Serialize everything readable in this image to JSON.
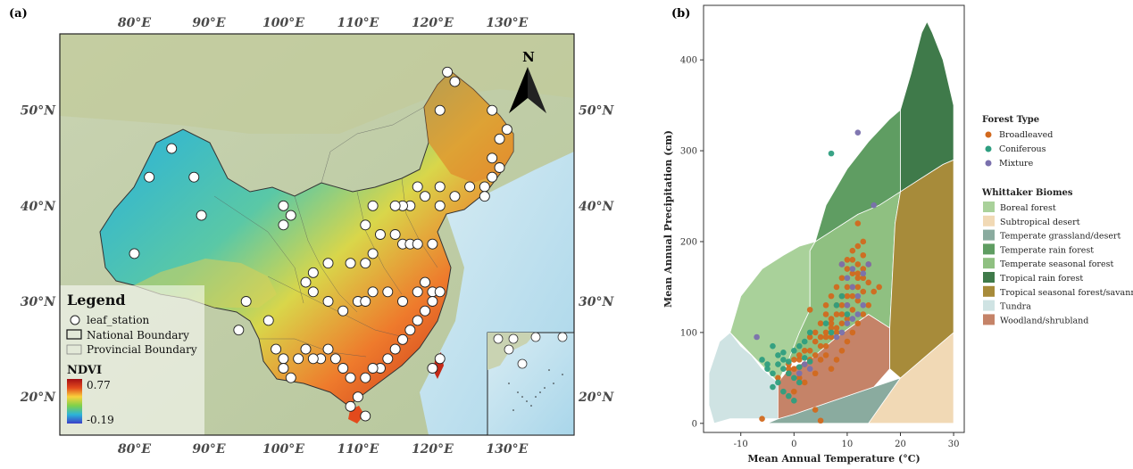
{
  "panel_a": {
    "label": "(a)",
    "lon_ticks": [
      "80°E",
      "90°E",
      "100°E",
      "110°E",
      "120°E",
      "130°E"
    ],
    "lat_ticks": [
      "50°N",
      "40°N",
      "30°N",
      "20°N"
    ],
    "north_label": "N",
    "legend": {
      "title": "Legend",
      "station": "leaf_station",
      "national": "National Boundary",
      "provincial": "Provincial Boundary",
      "ndvi_title": "NDVI",
      "ndvi_max": "0.77",
      "ndvi_min": "-0.19"
    },
    "stations": [
      [
        122,
        54
      ],
      [
        123,
        53
      ],
      [
        121,
        50
      ],
      [
        128,
        50
      ],
      [
        130,
        48
      ],
      [
        129,
        47
      ],
      [
        128,
        45
      ],
      [
        129,
        44
      ],
      [
        128,
        43
      ],
      [
        127,
        42
      ],
      [
        127,
        41
      ],
      [
        125,
        42
      ],
      [
        123,
        41
      ],
      [
        121,
        40
      ],
      [
        118,
        42
      ],
      [
        119,
        41
      ],
      [
        121,
        42
      ],
      [
        117,
        40
      ],
      [
        116,
        40
      ],
      [
        115,
        40
      ],
      [
        112,
        40
      ],
      [
        111,
        38
      ],
      [
        113,
        37
      ],
      [
        115,
        37
      ],
      [
        116,
        36
      ],
      [
        117,
        36
      ],
      [
        118,
        36
      ],
      [
        120,
        36
      ],
      [
        112,
        35
      ],
      [
        111,
        34
      ],
      [
        109,
        34
      ],
      [
        106,
        34
      ],
      [
        104,
        33
      ],
      [
        103,
        32
      ],
      [
        104,
        31
      ],
      [
        106,
        30
      ],
      [
        108,
        29
      ],
      [
        110,
        30
      ],
      [
        111,
        30
      ],
      [
        112,
        31
      ],
      [
        114,
        31
      ],
      [
        116,
        30
      ],
      [
        118,
        31
      ],
      [
        119,
        32
      ],
      [
        120,
        31
      ],
      [
        121,
        31
      ],
      [
        120,
        30
      ],
      [
        119,
        29
      ],
      [
        118,
        28
      ],
      [
        117,
        27
      ],
      [
        116,
        26
      ],
      [
        115,
        25
      ],
      [
        114,
        24
      ],
      [
        113,
        23
      ],
      [
        112,
        23
      ],
      [
        111,
        22
      ],
      [
        109,
        22
      ],
      [
        108,
        23
      ],
      [
        107,
        24
      ],
      [
        106,
        25
      ],
      [
        105,
        24
      ],
      [
        104,
        24
      ],
      [
        103,
        25
      ],
      [
        102,
        24
      ],
      [
        100,
        24
      ],
      [
        101,
        22
      ],
      [
        110,
        20
      ],
      [
        109,
        19
      ],
      [
        111,
        18
      ],
      [
        120,
        23
      ],
      [
        121,
        24
      ],
      [
        100,
        23
      ],
      [
        99,
        25
      ],
      [
        98,
        28
      ],
      [
        95,
        30
      ],
      [
        94,
        27
      ],
      [
        85,
        46
      ],
      [
        82,
        43
      ],
      [
        88,
        43
      ],
      [
        89,
        39
      ],
      [
        80,
        35
      ],
      [
        100,
        40
      ],
      [
        101,
        39
      ],
      [
        100,
        38
      ]
    ]
  },
  "panel_b": {
    "label": "(b)",
    "forest_type_title": "Forest Type",
    "forest_types": [
      {
        "name": "Broadleaved",
        "color": "#d2691e"
      },
      {
        "name": "Coniferous",
        "color": "#2e9e80"
      },
      {
        "name": "Mixture",
        "color": "#7a70ad"
      }
    ],
    "biome_title": "Whittaker Biomes",
    "biomes": [
      {
        "name": "Boreal forest",
        "color": "#a9d19a"
      },
      {
        "name": "Subtropical desert",
        "color": "#f1d9b5"
      },
      {
        "name": "Temperate grassland/desert",
        "color": "#8aab9f"
      },
      {
        "name": "Temperate rain forest",
        "color": "#5f9d62"
      },
      {
        "name": "Temperate seasonal forest",
        "color": "#8fc081"
      },
      {
        "name": "Tropical rain forest",
        "color": "#3f7a4a"
      },
      {
        "name": "Tropical seasonal forest/savanna",
        "color": "#a78b3a"
      },
      {
        "name": "Tundra",
        "color": "#cfe3e3"
      },
      {
        "name": "Woodland/shrubland",
        "color": "#c58368"
      }
    ]
  },
  "chart_data": {
    "type": "scatter",
    "xlabel": "Mean Annual Temperature (°C)",
    "ylabel": "Mean Annual Precipitation (cm)",
    "xlim": [
      -17,
      32
    ],
    "ylim": [
      -10,
      460
    ],
    "xticks": [
      -10,
      0,
      10,
      20,
      30
    ],
    "yticks": [
      0,
      100,
      200,
      300,
      400
    ],
    "legend_position": "right",
    "series": [
      {
        "name": "Broadleaved",
        "points": [
          [
            -6,
            5
          ],
          [
            4,
            15
          ],
          [
            5,
            3
          ],
          [
            -3,
            50
          ],
          [
            -1,
            60
          ],
          [
            0,
            70
          ],
          [
            1,
            75
          ],
          [
            2,
            65
          ],
          [
            3,
            80
          ],
          [
            4,
            90
          ],
          [
            5,
            95
          ],
          [
            6,
            100
          ],
          [
            7,
            110
          ],
          [
            8,
            105
          ],
          [
            9,
            120
          ],
          [
            10,
            130
          ],
          [
            11,
            140
          ],
          [
            12,
            150
          ],
          [
            13,
            160
          ],
          [
            9,
            140
          ],
          [
            8,
            130
          ],
          [
            7,
            115
          ],
          [
            10,
            150
          ],
          [
            11,
            165
          ],
          [
            12,
            175
          ],
          [
            13,
            185
          ],
          [
            12,
            195
          ],
          [
            11,
            180
          ],
          [
            10,
            170
          ],
          [
            9,
            160
          ],
          [
            8,
            150
          ],
          [
            7,
            140
          ],
          [
            6,
            120
          ],
          [
            5,
            110
          ],
          [
            4,
            100
          ],
          [
            3,
            95
          ],
          [
            2,
            80
          ],
          [
            1,
            70
          ],
          [
            0,
            60
          ],
          [
            -1,
            55
          ],
          [
            6,
            85
          ],
          [
            7,
            95
          ],
          [
            8,
            100
          ],
          [
            9,
            110
          ],
          [
            10,
            115
          ],
          [
            11,
            125
          ],
          [
            12,
            135
          ],
          [
            13,
            145
          ],
          [
            14,
            155
          ],
          [
            13,
            170
          ],
          [
            12,
            160
          ],
          [
            11,
            150
          ],
          [
            10,
            140
          ],
          [
            9,
            130
          ],
          [
            8,
            120
          ],
          [
            7,
            105
          ],
          [
            6,
            95
          ],
          [
            5,
            85
          ],
          [
            4,
            75
          ],
          [
            3,
            70
          ],
          [
            12,
            220
          ],
          [
            13,
            200
          ],
          [
            14,
            175
          ],
          [
            12,
            165
          ],
          [
            11,
            190
          ],
          [
            10,
            180
          ],
          [
            9,
            175
          ],
          [
            14,
            130
          ],
          [
            15,
            145
          ],
          [
            16,
            150
          ],
          [
            7,
            60
          ],
          [
            8,
            70
          ],
          [
            9,
            80
          ],
          [
            10,
            90
          ],
          [
            11,
            100
          ],
          [
            12,
            110
          ],
          [
            13,
            120
          ],
          [
            3,
            125
          ],
          [
            6,
            130
          ],
          [
            -1,
            65
          ],
          [
            2,
            45
          ],
          [
            0,
            35
          ],
          [
            1,
            50
          ],
          [
            4,
            55
          ],
          [
            5,
            70
          ],
          [
            6,
            75
          ]
        ]
      },
      {
        "name": "Coniferous",
        "points": [
          [
            7,
            297
          ],
          [
            -4,
            85
          ],
          [
            -3,
            75
          ],
          [
            -2,
            70
          ],
          [
            -1,
            68
          ],
          [
            0,
            80
          ],
          [
            1,
            85
          ],
          [
            -2,
            60
          ],
          [
            -1,
            55
          ],
          [
            0,
            50
          ],
          [
            -3,
            45
          ],
          [
            -4,
            40
          ],
          [
            2,
            90
          ],
          [
            3,
            100
          ],
          [
            -5,
            65
          ],
          [
            -4,
            55
          ],
          [
            -2,
            35
          ],
          [
            -1,
            30
          ],
          [
            0,
            25
          ],
          [
            1,
            45
          ],
          [
            -6,
            70
          ],
          [
            -5,
            60
          ],
          [
            -3,
            65
          ],
          [
            -2,
            78
          ],
          [
            1,
            62
          ],
          [
            2,
            72
          ],
          [
            3,
            68
          ],
          [
            9,
            140
          ],
          [
            8,
            130
          ],
          [
            10,
            120
          ],
          [
            7,
            100
          ],
          [
            6,
            110
          ]
        ]
      },
      {
        "name": "Mixture",
        "points": [
          [
            12,
            320
          ],
          [
            15,
            240
          ],
          [
            -7,
            95
          ],
          [
            1,
            55
          ],
          [
            3,
            60
          ],
          [
            2,
            65
          ],
          [
            9,
            175
          ],
          [
            10,
            160
          ],
          [
            11,
            150
          ],
          [
            12,
            140
          ],
          [
            13,
            130
          ],
          [
            12,
            120
          ],
          [
            11,
            115
          ],
          [
            10,
            110
          ],
          [
            9,
            100
          ],
          [
            8,
            95
          ],
          [
            13,
            165
          ],
          [
            14,
            175
          ],
          [
            11,
            170
          ],
          [
            10,
            130
          ]
        ]
      }
    ]
  }
}
